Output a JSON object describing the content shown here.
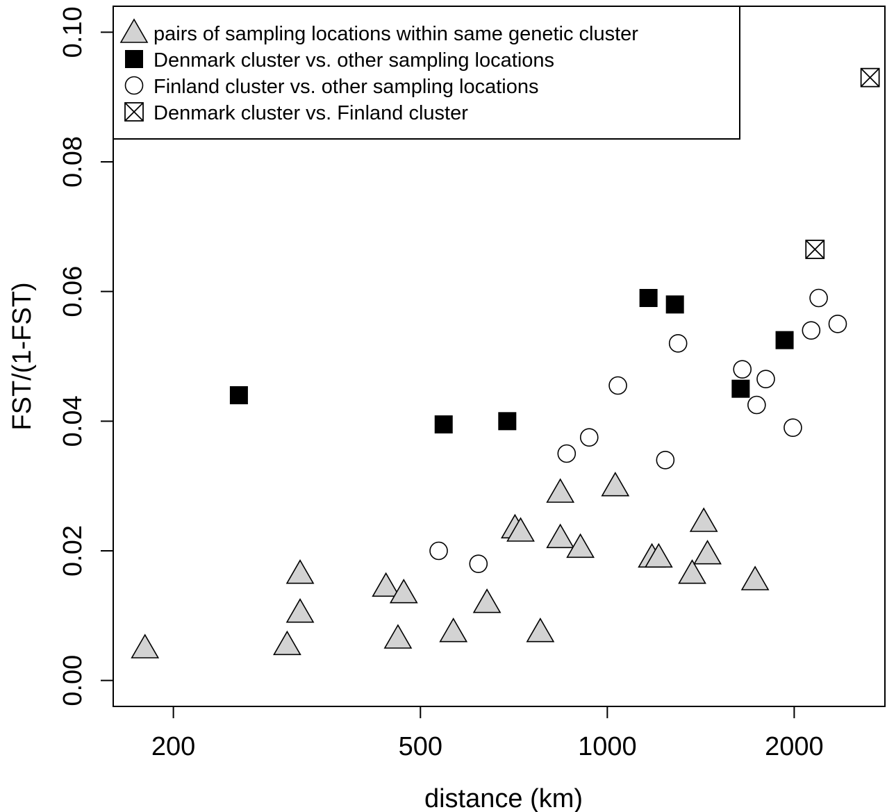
{
  "chart_data": {
    "type": "scatter",
    "xlabel": "distance (km)",
    "ylabel": "FST/(1-FST)",
    "xscale": "log",
    "xlim": [
      160,
      2800
    ],
    "ylim": [
      -0.004,
      0.104
    ],
    "xticks": [
      200,
      500,
      1000,
      2000
    ],
    "xtick_labels": [
      "200",
      "500",
      "1000",
      "2000"
    ],
    "yticks": [
      0.0,
      0.02,
      0.04,
      0.06,
      0.08,
      0.1
    ],
    "ytick_labels": [
      "0.00",
      "0.02",
      "0.04",
      "0.06",
      "0.08",
      "0.10"
    ],
    "legend_position": "top-left",
    "grid": false,
    "colors": {
      "triangle_fill": "#d3d3d3",
      "square_fill": "#000000",
      "circle_fill": "#ffffff",
      "stroke": "#000000"
    },
    "series": [
      {
        "name": "pairs of sampling locations within same genetic cluster",
        "marker": "triangle",
        "points": [
          [
            180,
            0.005
          ],
          [
            305,
            0.0055
          ],
          [
            320,
            0.0105
          ],
          [
            320,
            0.0165
          ],
          [
            440,
            0.0145
          ],
          [
            460,
            0.0065
          ],
          [
            470,
            0.0135
          ],
          [
            565,
            0.0075
          ],
          [
            640,
            0.012
          ],
          [
            710,
            0.0235
          ],
          [
            725,
            0.023
          ],
          [
            780,
            0.0075
          ],
          [
            840,
            0.029
          ],
          [
            840,
            0.022
          ],
          [
            905,
            0.0205
          ],
          [
            1030,
            0.03
          ],
          [
            1180,
            0.019
          ],
          [
            1210,
            0.019
          ],
          [
            1370,
            0.0165
          ],
          [
            1430,
            0.0245
          ],
          [
            1450,
            0.0195
          ],
          [
            1730,
            0.0155
          ]
        ]
      },
      {
        "name": "Denmark cluster vs. other sampling locations",
        "marker": "square",
        "points": [
          [
            255,
            0.044
          ],
          [
            545,
            0.0395
          ],
          [
            690,
            0.04
          ],
          [
            1165,
            0.059
          ],
          [
            1285,
            0.058
          ],
          [
            1640,
            0.045
          ],
          [
            1930,
            0.0525
          ]
        ]
      },
      {
        "name": "Finland cluster vs. other sampling locations",
        "marker": "circle",
        "points": [
          [
            535,
            0.02
          ],
          [
            620,
            0.018
          ],
          [
            860,
            0.035
          ],
          [
            935,
            0.0375
          ],
          [
            1040,
            0.0455
          ],
          [
            1240,
            0.034
          ],
          [
            1300,
            0.052
          ],
          [
            1650,
            0.048
          ],
          [
            1740,
            0.0425
          ],
          [
            1800,
            0.0465
          ],
          [
            1990,
            0.039
          ],
          [
            2130,
            0.054
          ],
          [
            2190,
            0.059
          ],
          [
            2350,
            0.055
          ]
        ]
      },
      {
        "name": "Denmark cluster vs. Finland cluster",
        "marker": "crossed-square",
        "points": [
          [
            2160,
            0.0665
          ],
          [
            2650,
            0.093
          ]
        ]
      }
    ]
  }
}
